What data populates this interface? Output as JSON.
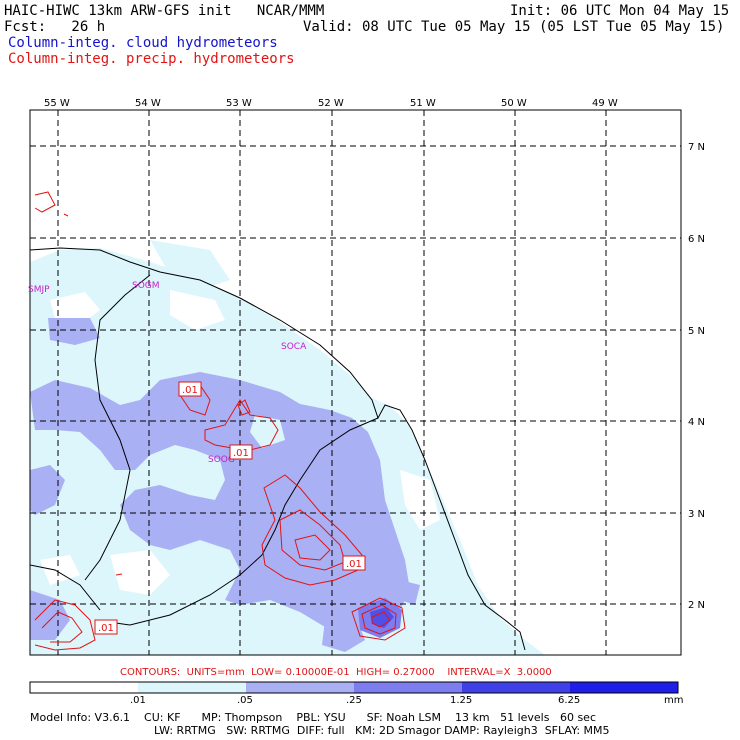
{
  "header": {
    "line1_left": "HAIC-HIWC 13km ARW-GFS init   NCAR/MMM",
    "line1_right": "Init: 06 UTC Mon 04 May 15",
    "line2_left": "Fcst:   26 h",
    "line2_right": "Valid: 08 UTC Tue 05 May 15 (05 LST Tue 05 May 15)",
    "legend_cloud": "Column-integ. cloud hydrometeors",
    "legend_precip": "Column-integ. precip. hydrometeors"
  },
  "map": {
    "lon_labels": [
      "55 W",
      "54 W",
      "53 W",
      "52 W",
      "51 W",
      "50 W",
      "49 W"
    ],
    "lat_labels": [
      "7 N",
      "6 N",
      "5 N",
      "4 N",
      "3 N",
      "2 N"
    ],
    "stations": [
      "SMJP",
      "SOGM",
      "SOCA",
      "SOOG"
    ],
    "contour_labels": [
      ".01",
      ".01",
      ".01",
      ".01"
    ],
    "colors": {
      "shade1": "#dcf6fc",
      "shade2": "#aab0f4",
      "shade3": "#7d7df0",
      "shade4": "#4040e8",
      "contour": "#e01414",
      "station": "#c81ec8"
    }
  },
  "contours_info": "CONTOURS:  UNITS=mm  LOW= 0.10000E-01  HIGH= 0.27000    INTERVAL=X  3.0000",
  "colorbar": {
    "ticks": [
      ".01",
      ".05",
      ".25",
      "1.25",
      "6.25"
    ],
    "unit": "mm",
    "colors": [
      "#ffffff",
      "#dcf6fc",
      "#aab0f4",
      "#7d7df0",
      "#4040e8",
      "#1e1ee8"
    ]
  },
  "footer": {
    "line1": "Model Info: V3.6.1    CU: KF      MP: Thompson    PBL: YSU      SF: Noah LSM    13 km   51 levels   60 sec",
    "line2": "LW: RRTMG   SW: RRTMG  DIFF: full   KM: 2D Smagor DAMP: Rayleigh3  SFLAY: MM5"
  }
}
